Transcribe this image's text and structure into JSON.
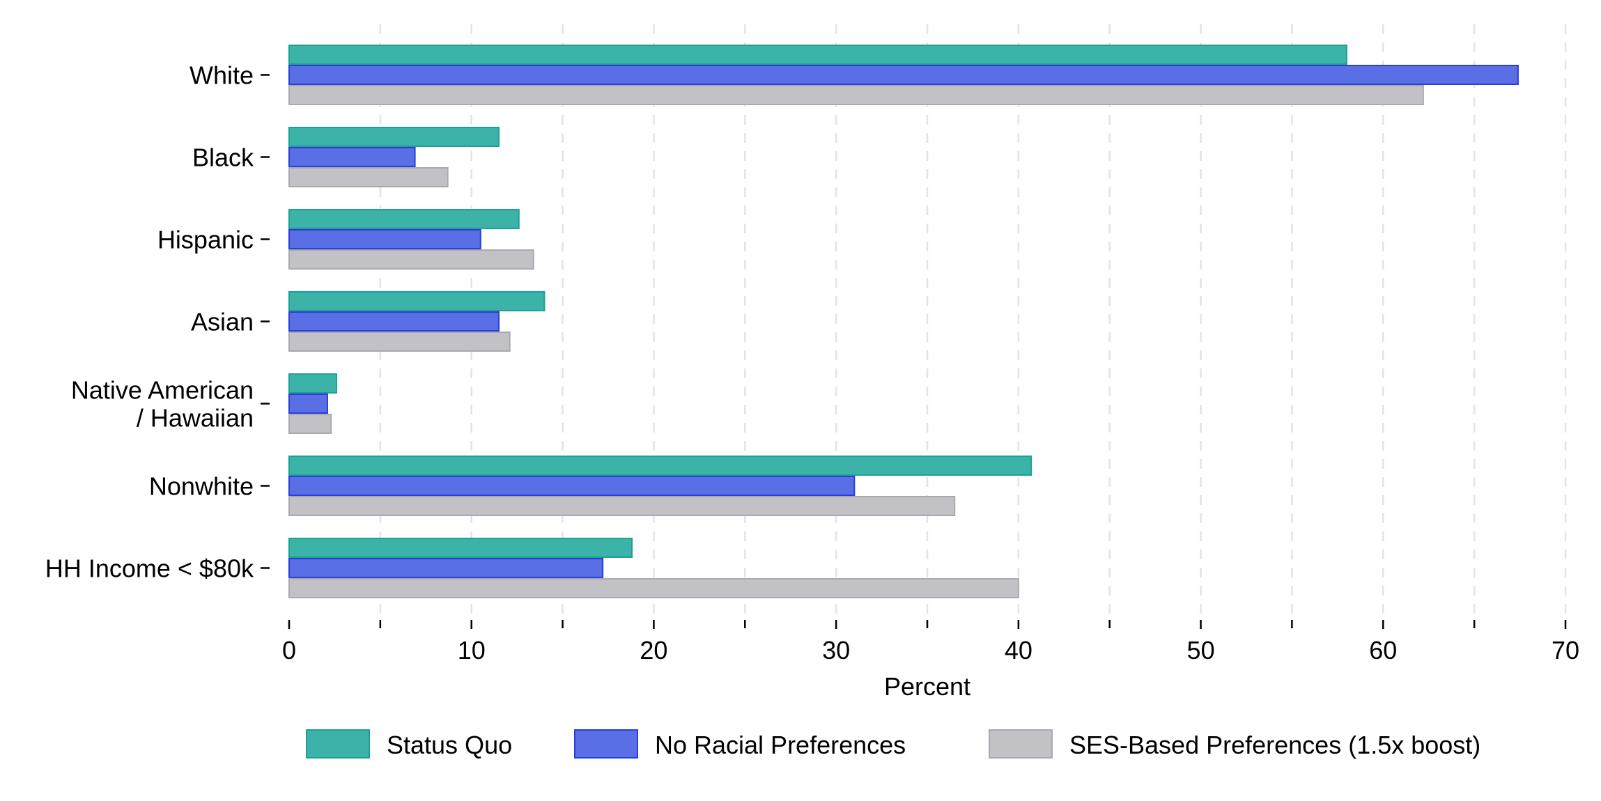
{
  "chart_data": {
    "type": "bar",
    "orientation": "horizontal",
    "categories": [
      "White",
      "Black",
      "Hispanic",
      "Asian",
      "Native American\n/ Hawaiian",
      "Nonwhite",
      "HH Income < $80k"
    ],
    "series": [
      {
        "name": "Status Quo",
        "color": "#3bb3a8",
        "edge": "#20a090",
        "values": [
          58.0,
          11.5,
          12.6,
          14.0,
          2.6,
          40.7,
          18.8
        ]
      },
      {
        "name": "No Racial Preferences",
        "color": "#5a6ee6",
        "edge": "#2a3fd8",
        "values": [
          67.4,
          6.9,
          10.5,
          11.5,
          2.1,
          31.0,
          17.2
        ]
      },
      {
        "name": "SES-Based Preferences (1.5x boost)",
        "color": "#c1c1c6",
        "edge": "#a9a9b0",
        "values": [
          62.2,
          8.7,
          13.4,
          12.1,
          2.3,
          36.5,
          40.0
        ]
      }
    ],
    "xlabel": "Percent",
    "xlim": [
      0,
      70
    ],
    "xticks": [
      0,
      10,
      20,
      30,
      40,
      50,
      60,
      70
    ],
    "xticks_minor": [
      5,
      15,
      25,
      35,
      45,
      55,
      65
    ],
    "grid": "vertical dashed",
    "legend": "bottom"
  }
}
